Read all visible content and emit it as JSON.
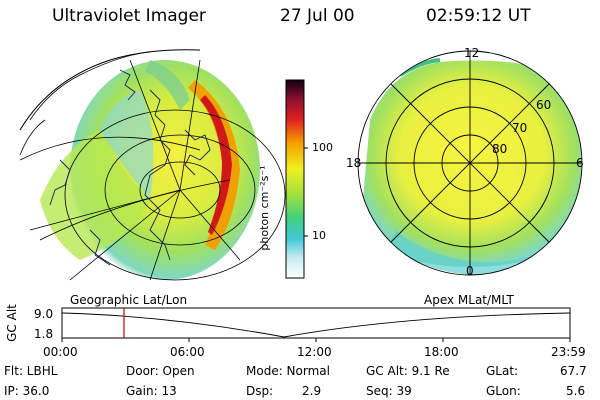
{
  "header": {
    "title": "Ultraviolet Imager",
    "date": "27 Jul 00",
    "time": "02:59:12 UT"
  },
  "colorbar": {
    "unit_label": "photon cm⁻²s⁻¹",
    "ticks": [
      "100",
      "10"
    ]
  },
  "left_panel": {
    "label": "Geographic Lat/Lon"
  },
  "right_panel": {
    "label": "Apex MLat/MLT",
    "mlt_labels": {
      "top": "12",
      "left": "18",
      "right": "6",
      "bottom": "0"
    },
    "lat_labels": [
      "60",
      "70",
      "80"
    ]
  },
  "altitude_plot": {
    "ylabel": "GC Alt",
    "yticks": [
      "9.0",
      "1.8"
    ],
    "xticks": [
      "00:00",
      "06:00",
      "12:00",
      "18:00",
      "23:59"
    ],
    "marker_time": "02:59:12"
  },
  "status": {
    "row1": {
      "flt": "Flt: LBHL",
      "door": "Door: Open",
      "mode": "Mode: Normal",
      "gc_alt": "GC Alt: 9.1 Re",
      "glat_label": "GLat:",
      "glat_value": "67.7"
    },
    "row2": {
      "ip": "IP: 36.0",
      "gain": "Gain: 13",
      "dsp_label": "Dsp:",
      "dsp_value": "2.9",
      "seq": "Seq: 39",
      "glon_label": "GLon:",
      "glon_value": "5.6"
    }
  },
  "colors": {
    "marker": "#cc0000",
    "background": "#ffffff"
  }
}
